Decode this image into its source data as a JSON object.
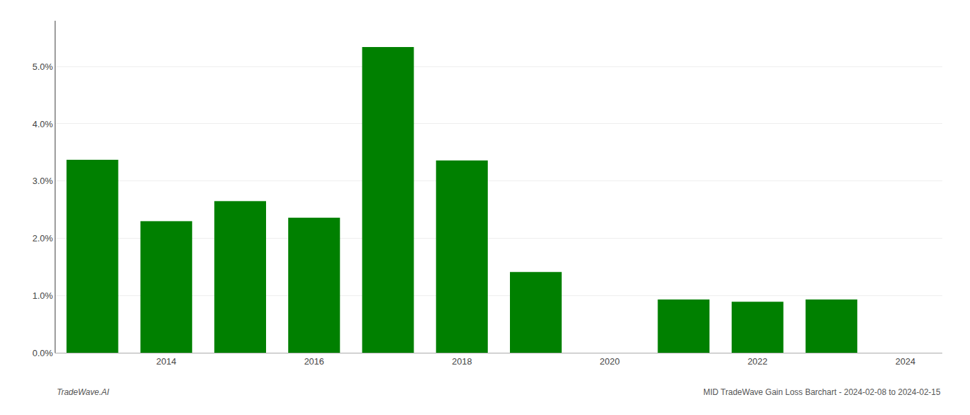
{
  "chart_data": {
    "type": "bar",
    "x": [
      2013,
      2014,
      2015,
      2016,
      2017,
      2018,
      2019,
      2020,
      2021,
      2022,
      2023
    ],
    "values": [
      0.0337,
      0.023,
      0.0265,
      0.0236,
      0.0534,
      0.0336,
      0.0141,
      0.0,
      0.0093,
      0.0089,
      0.0093
    ],
    "color": "#008000",
    "xlim": [
      2012.5,
      2024.5
    ],
    "xticks": [
      2014,
      2016,
      2018,
      2020,
      2022,
      2024
    ],
    "ylim": [
      0.0,
      0.058
    ],
    "yticks": [
      {
        "value": 0.0,
        "label": "0.0%"
      },
      {
        "value": 0.01,
        "label": "1.0%"
      },
      {
        "value": 0.02,
        "label": "2.0%"
      },
      {
        "value": 0.03,
        "label": "3.0%"
      },
      {
        "value": 0.04,
        "label": "4.0%"
      },
      {
        "value": 0.05,
        "label": "5.0%"
      }
    ],
    "grid": true,
    "annotations": [
      "TradeWave.AI",
      "MID TradeWave Gain Loss Barchart - 2024-02-08 to 2024-02-15"
    ]
  }
}
